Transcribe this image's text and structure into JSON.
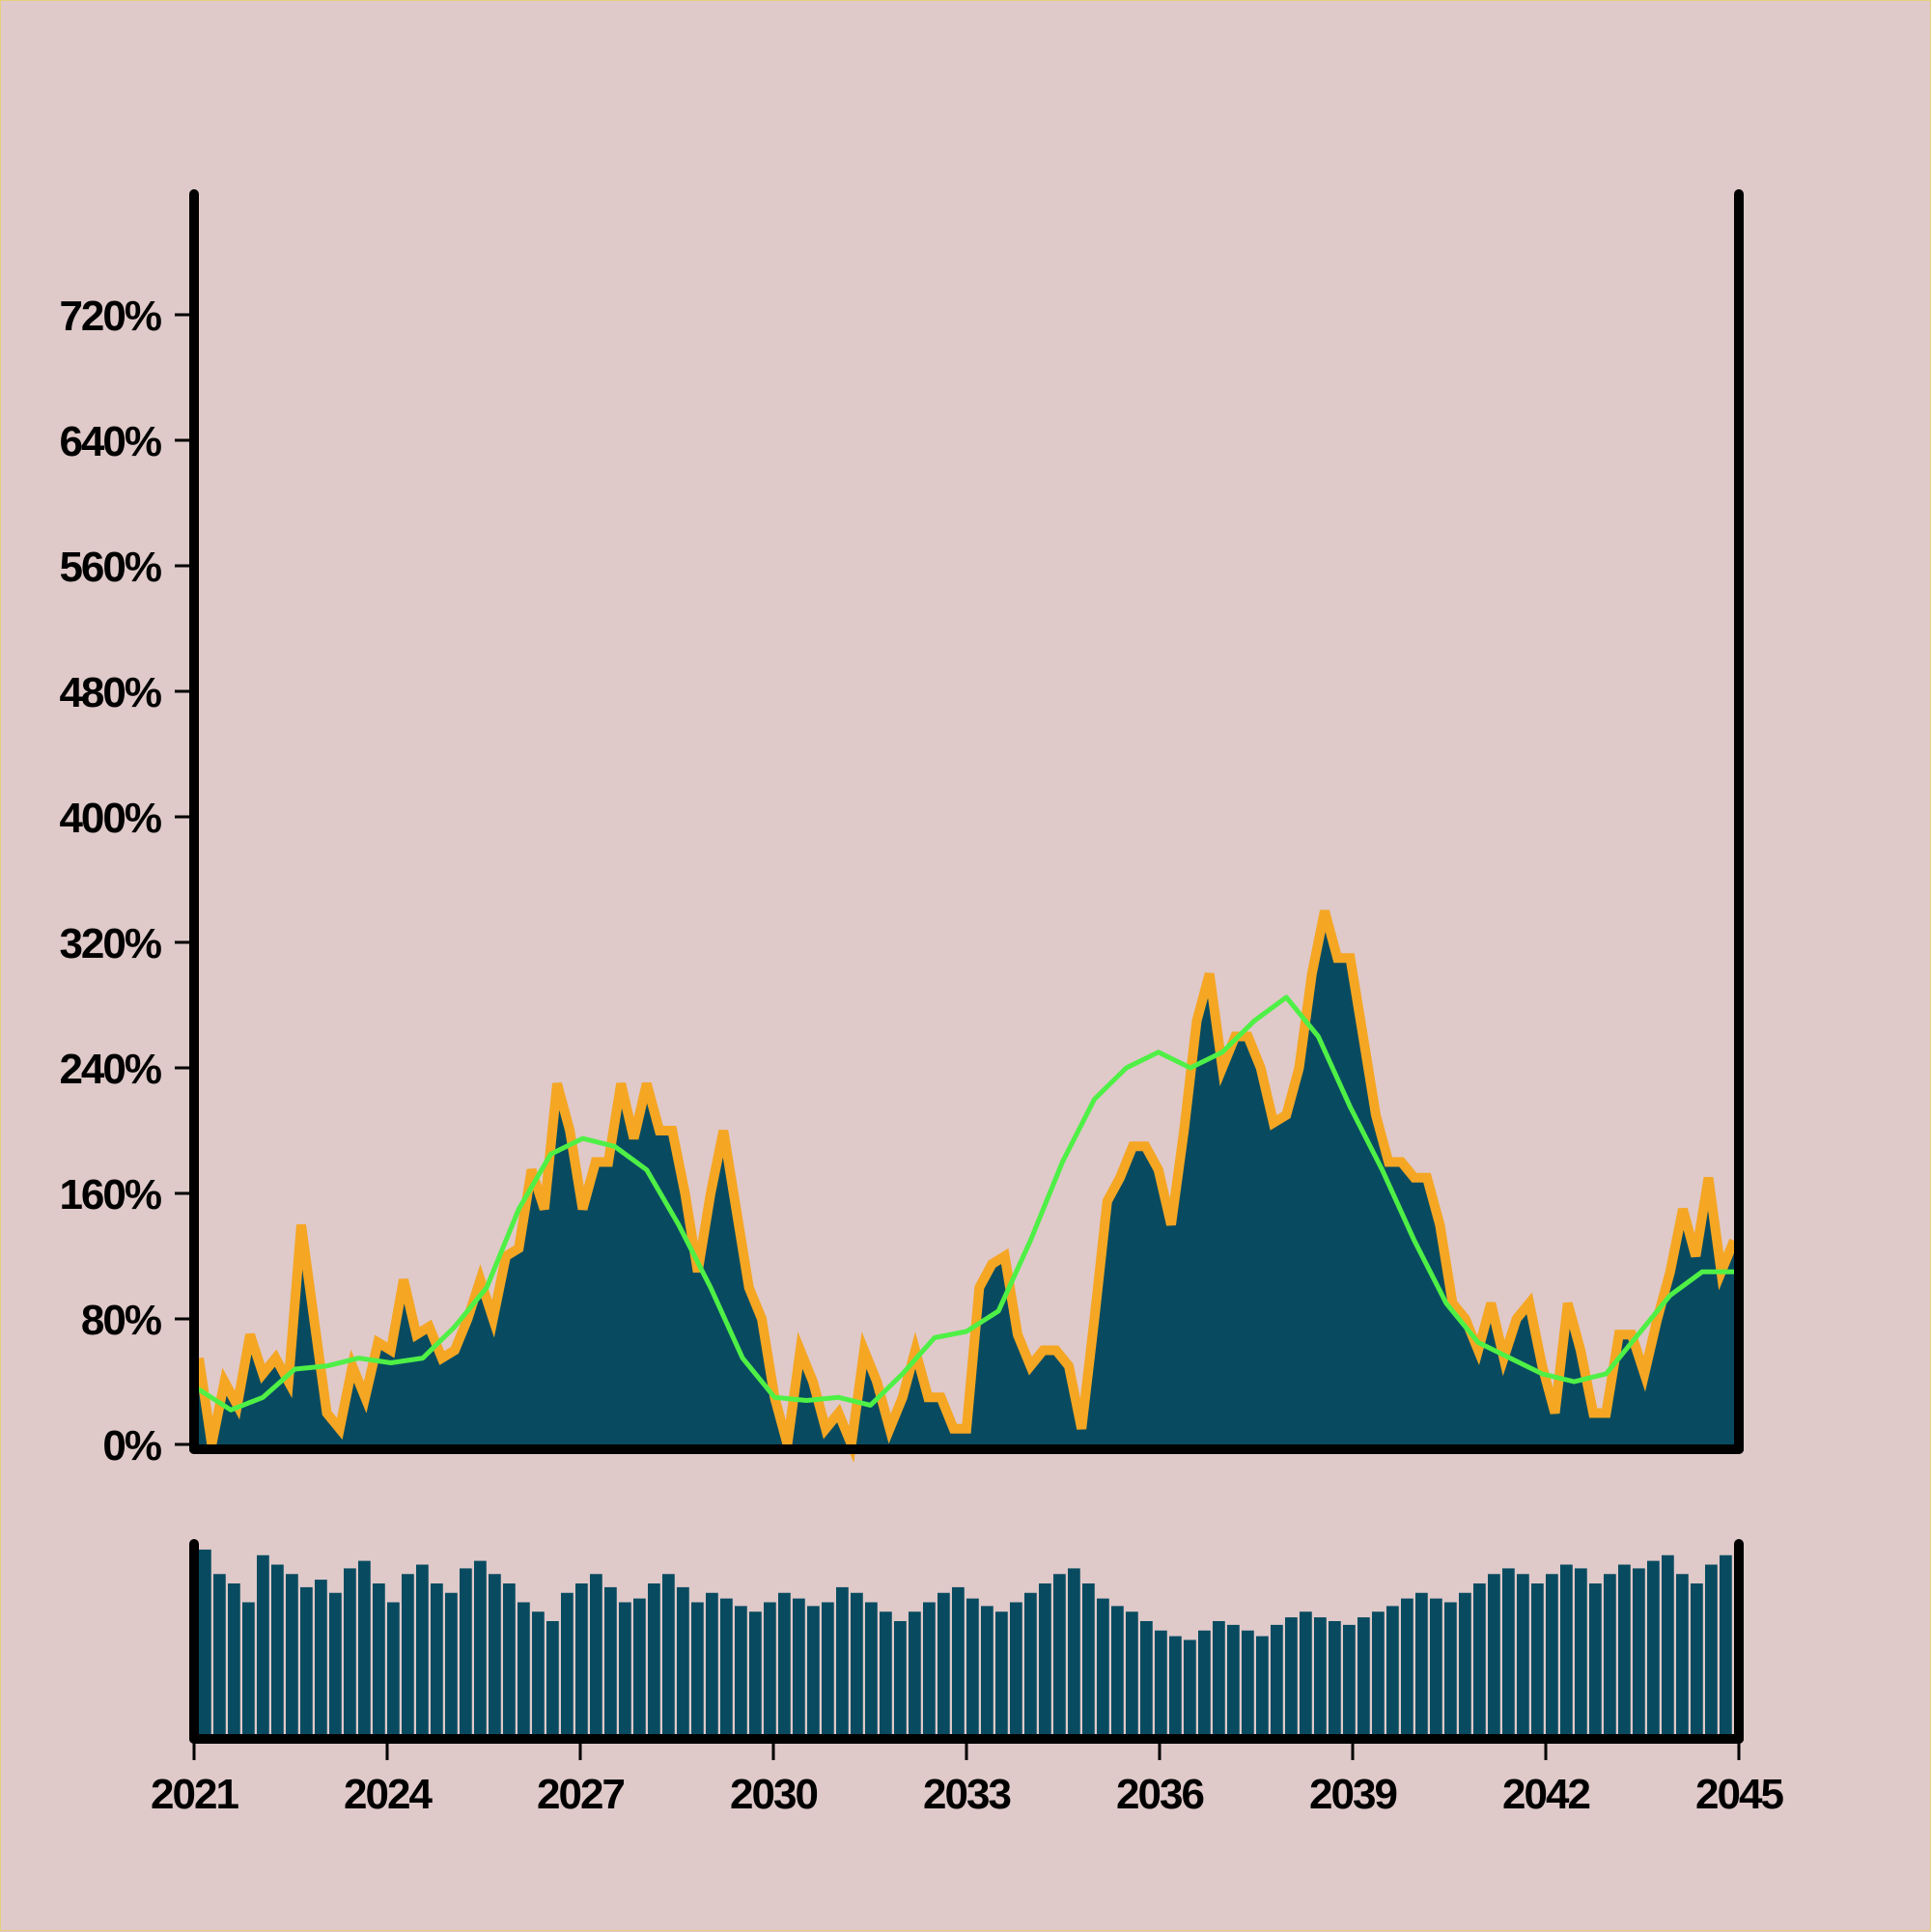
{
  "colors": {
    "background": "#dfc9c9",
    "area_fill": "#084b60",
    "area_edge": "#f5a623",
    "moving_average": "#4ff046",
    "volume_bars": "#084b60",
    "axis": "#000000"
  },
  "chart_data": [
    {
      "type": "area",
      "x_unit": "year",
      "xlim": [
        2021,
        2045
      ],
      "ylim": [
        0,
        800
      ],
      "y_tick_values": [
        0,
        80,
        160,
        240,
        320,
        400,
        480,
        560,
        640,
        720
      ],
      "y_tick_labels": [
        "0%",
        "80%",
        "160%",
        "240%",
        "320%",
        "400%",
        "480%",
        "560%",
        "640%",
        "720%"
      ],
      "series": [
        {
          "role": "value",
          "x": [
            2021.0,
            2021.2,
            2021.4,
            2021.6,
            2021.8,
            2022.0,
            2022.2,
            2022.4,
            2022.6,
            2022.8,
            2023.0,
            2023.2,
            2023.4,
            2023.6,
            2023.8,
            2024.0,
            2024.2,
            2024.4,
            2024.6,
            2024.8,
            2025.0,
            2025.2,
            2025.4,
            2025.6,
            2025.8,
            2026.0,
            2026.2,
            2026.4,
            2026.6,
            2026.8,
            2027.0,
            2027.2,
            2027.4,
            2027.6,
            2027.8,
            2028.0,
            2028.2,
            2028.4,
            2028.6,
            2028.8,
            2029.0,
            2029.2,
            2029.4,
            2029.6,
            2029.8,
            2030.0,
            2030.2,
            2030.4,
            2030.6,
            2030.8,
            2031.0,
            2031.2,
            2031.4,
            2031.6,
            2031.8,
            2032.0,
            2032.2,
            2032.4,
            2032.6,
            2032.8,
            2033.0,
            2033.2,
            2033.4,
            2033.6,
            2033.8,
            2034.0,
            2034.2,
            2034.4,
            2034.6,
            2034.8,
            2035.0,
            2035.2,
            2035.4,
            2035.6,
            2035.8,
            2036.0,
            2036.2,
            2036.4,
            2036.6,
            2036.8,
            2037.0,
            2037.2,
            2037.4,
            2037.6,
            2037.8,
            2038.0,
            2038.2,
            2038.4,
            2038.6,
            2038.8,
            2039.0,
            2039.2,
            2039.4,
            2039.6,
            2039.8,
            2040.0,
            2040.2,
            2040.4,
            2040.6,
            2040.8,
            2041.0,
            2041.2,
            2041.4,
            2041.6,
            2041.8,
            2042.0,
            2042.2,
            2042.4,
            2042.6,
            2042.8,
            2043.0,
            2043.2,
            2043.4,
            2043.6,
            2043.8,
            2044.0,
            2044.2,
            2044.4,
            2044.6,
            2044.8,
            2045.0
          ],
          "y": [
            55,
            0,
            40,
            25,
            70,
            45,
            55,
            40,
            140,
            80,
            20,
            10,
            50,
            30,
            65,
            60,
            105,
            70,
            75,
            55,
            60,
            80,
            105,
            80,
            120,
            125,
            175,
            150,
            230,
            200,
            150,
            180,
            180,
            230,
            195,
            230,
            200,
            200,
            160,
            110,
            160,
            200,
            150,
            100,
            80,
            30,
            0,
            60,
            40,
            10,
            20,
            0,
            60,
            40,
            10,
            30,
            60,
            30,
            30,
            10,
            10,
            100,
            115,
            120,
            70,
            50,
            60,
            60,
            50,
            10,
            80,
            155,
            170,
            190,
            190,
            175,
            140,
            200,
            270,
            300,
            240,
            260,
            260,
            240,
            205,
            210,
            240,
            300,
            340,
            310,
            310,
            260,
            210,
            180,
            180,
            170,
            170,
            140,
            90,
            80,
            60,
            90,
            55,
            80,
            90,
            50,
            20,
            90,
            60,
            20,
            20,
            70,
            70,
            45,
            80,
            110,
            150,
            120,
            170,
            110,
            130
          ]
        },
        {
          "role": "moving_average",
          "x": [
            2021.0,
            2021.5,
            2022.0,
            2022.5,
            2023.0,
            2023.5,
            2024.0,
            2024.5,
            2025.0,
            2025.5,
            2026.0,
            2026.5,
            2027.0,
            2027.5,
            2028.0,
            2028.5,
            2029.0,
            2029.5,
            2030.0,
            2030.5,
            2031.0,
            2031.5,
            2032.0,
            2032.5,
            2033.0,
            2033.5,
            2034.0,
            2034.5,
            2035.0,
            2035.5,
            2036.0,
            2036.5,
            2037.0,
            2037.5,
            2038.0,
            2038.5,
            2039.0,
            2039.5,
            2040.0,
            2040.5,
            2041.0,
            2041.5,
            2042.0,
            2042.5,
            2043.0,
            2043.5,
            2044.0,
            2044.5,
            2045.0
          ],
          "y": [
            35,
            22,
            30,
            48,
            50,
            55,
            52,
            55,
            75,
            100,
            150,
            185,
            195,
            190,
            175,
            140,
            100,
            55,
            30,
            28,
            30,
            25,
            45,
            68,
            72,
            85,
            130,
            180,
            220,
            240,
            250,
            240,
            250,
            270,
            285,
            260,
            215,
            175,
            130,
            90,
            65,
            55,
            45,
            40,
            45,
            70,
            95,
            110,
            110
          ]
        }
      ]
    },
    {
      "type": "bar",
      "x_unit": "year",
      "xlim": [
        2021,
        2045
      ],
      "x_tick_values": [
        2021,
        2024,
        2027,
        2030,
        2033,
        2036,
        2039,
        2042,
        2045
      ],
      "x_tick_labels": [
        "2021",
        "2024",
        "2027",
        "2030",
        "2033",
        "2036",
        "2039",
        "2042",
        "2045"
      ],
      "ylim": [
        0,
        100
      ],
      "values": [
        98,
        85,
        80,
        70,
        95,
        90,
        85,
        78,
        82,
        75,
        88,
        92,
        80,
        70,
        85,
        90,
        80,
        75,
        88,
        92,
        85,
        80,
        70,
        65,
        60,
        75,
        80,
        85,
        78,
        70,
        72,
        80,
        85,
        78,
        70,
        75,
        72,
        68,
        65,
        70,
        75,
        72,
        68,
        70,
        78,
        75,
        70,
        65,
        60,
        65,
        70,
        75,
        78,
        72,
        68,
        65,
        70,
        75,
        80,
        85,
        88,
        80,
        72,
        68,
        65,
        60,
        55,
        52,
        50,
        55,
        60,
        58,
        55,
        52,
        58,
        62,
        65,
        62,
        60,
        58,
        62,
        65,
        68,
        72,
        75,
        72,
        70,
        75,
        80,
        85,
        88,
        85,
        80,
        85,
        90,
        88,
        80,
        85,
        90,
        88,
        92,
        95,
        85,
        80,
        90,
        95
      ]
    }
  ]
}
